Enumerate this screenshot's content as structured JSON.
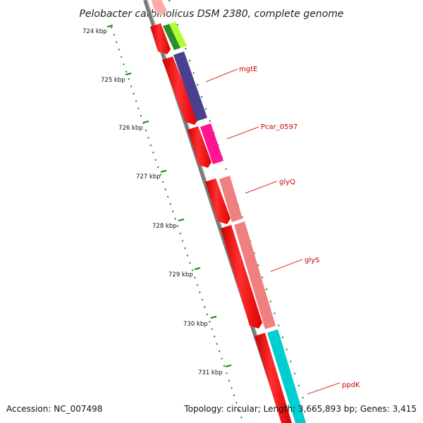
{
  "title": "Pelobacter carbinolicus DSM 2380, complete genome",
  "footer": {
    "accession": "Accession: NC_007498",
    "topology": "Topology: circular; Length: 3,665,893 bp; Genes: 3,415"
  },
  "colors": {
    "backbone": "#808080",
    "tick": "#118811",
    "label": "#cc0000",
    "label_line": "#e03030"
  },
  "ruler": [
    "724 kbp",
    "725 kbp",
    "726 kbp",
    "727 kbp",
    "728 kbp",
    "729 kbp",
    "730 kbp",
    "731 kbp"
  ],
  "genes": [
    {
      "name": "",
      "color": "#ff9999"
    },
    {
      "name": "",
      "color": "#2e8b2e"
    },
    {
      "name": "",
      "color": "#adff2f"
    },
    {
      "name": "mgtE",
      "color": "#4b3f8f"
    },
    {
      "name": "Pcar_0597",
      "color": "#ff1493"
    },
    {
      "name": "glyQ",
      "color": "#f08080"
    },
    {
      "name": "glyS",
      "color": "#f08080"
    },
    {
      "name": "ppdK",
      "color": "#00ced1"
    }
  ]
}
